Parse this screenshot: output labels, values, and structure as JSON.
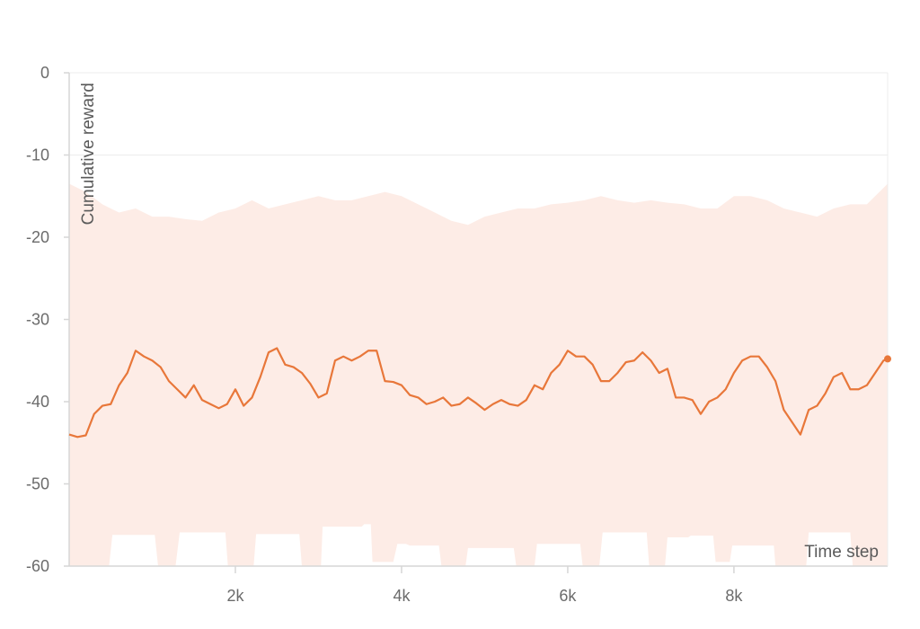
{
  "chart_data": {
    "type": "line",
    "xlabel": "Time step",
    "ylabel": "Cumulative reward",
    "xlim": [
      0,
      9850
    ],
    "ylim": [
      -60,
      0
    ],
    "grid": true,
    "x_ticks": [
      {
        "value": 2000,
        "label": "2k"
      },
      {
        "value": 4000,
        "label": "4k"
      },
      {
        "value": 6000,
        "label": "6k"
      },
      {
        "value": 8000,
        "label": "8k"
      }
    ],
    "y_ticks": [
      {
        "value": 0,
        "label": "0"
      },
      {
        "value": -10,
        "label": "-10"
      },
      {
        "value": -20,
        "label": "-20"
      },
      {
        "value": -30,
        "label": "-30"
      },
      {
        "value": -40,
        "label": "-40"
      },
      {
        "value": -50,
        "label": "-50"
      },
      {
        "value": -60,
        "label": "-60"
      }
    ],
    "colors": {
      "line": "#e8773a",
      "band": "#fdece6",
      "grid": "#ececec",
      "axis": "#d6d6d6"
    },
    "series": [
      {
        "line": [
          [
            0,
            -44.0
          ],
          [
            100,
            -44.3
          ],
          [
            200,
            -44.1
          ],
          [
            300,
            -41.5
          ],
          [
            400,
            -40.5
          ],
          [
            500,
            -40.3
          ],
          [
            600,
            -38.0
          ],
          [
            700,
            -36.5
          ],
          [
            800,
            -33.8
          ],
          [
            900,
            -34.5
          ],
          [
            1000,
            -35.0
          ],
          [
            1100,
            -35.8
          ],
          [
            1200,
            -37.5
          ],
          [
            1300,
            -38.5
          ],
          [
            1400,
            -39.5
          ],
          [
            1500,
            -38.0
          ],
          [
            1600,
            -39.8
          ],
          [
            1700,
            -40.3
          ],
          [
            1800,
            -40.8
          ],
          [
            1900,
            -40.3
          ],
          [
            2000,
            -38.5
          ],
          [
            2100,
            -40.5
          ],
          [
            2200,
            -39.5
          ],
          [
            2300,
            -37.0
          ],
          [
            2400,
            -34.0
          ],
          [
            2500,
            -33.5
          ],
          [
            2600,
            -35.5
          ],
          [
            2700,
            -35.8
          ],
          [
            2800,
            -36.5
          ],
          [
            2900,
            -37.8
          ],
          [
            3000,
            -39.5
          ],
          [
            3100,
            -39.0
          ],
          [
            3200,
            -35.0
          ],
          [
            3300,
            -34.5
          ],
          [
            3400,
            -35.0
          ],
          [
            3500,
            -34.5
          ],
          [
            3600,
            -33.8
          ],
          [
            3700,
            -33.8
          ],
          [
            3800,
            -37.5
          ],
          [
            3900,
            -37.6
          ],
          [
            4000,
            -38.0
          ],
          [
            4100,
            -39.2
          ],
          [
            4200,
            -39.5
          ],
          [
            4300,
            -40.3
          ],
          [
            4400,
            -40.0
          ],
          [
            4500,
            -39.5
          ],
          [
            4600,
            -40.5
          ],
          [
            4700,
            -40.3
          ],
          [
            4800,
            -39.5
          ],
          [
            4900,
            -40.2
          ],
          [
            5000,
            -41.0
          ],
          [
            5100,
            -40.3
          ],
          [
            5200,
            -39.8
          ],
          [
            5300,
            -40.3
          ],
          [
            5400,
            -40.5
          ],
          [
            5500,
            -39.8
          ],
          [
            5600,
            -38.0
          ],
          [
            5700,
            -38.5
          ],
          [
            5800,
            -36.5
          ],
          [
            5900,
            -35.5
          ],
          [
            6000,
            -33.8
          ],
          [
            6100,
            -34.5
          ],
          [
            6200,
            -34.5
          ],
          [
            6300,
            -35.5
          ],
          [
            6400,
            -37.5
          ],
          [
            6500,
            -37.5
          ],
          [
            6600,
            -36.5
          ],
          [
            6700,
            -35.2
          ],
          [
            6800,
            -35.0
          ],
          [
            6900,
            -34.0
          ],
          [
            7000,
            -35.0
          ],
          [
            7100,
            -36.5
          ],
          [
            7200,
            -36.0
          ],
          [
            7300,
            -39.5
          ],
          [
            7400,
            -39.5
          ],
          [
            7500,
            -39.8
          ],
          [
            7600,
            -41.5
          ],
          [
            7700,
            -40.0
          ],
          [
            7800,
            -39.5
          ],
          [
            7900,
            -38.5
          ],
          [
            8000,
            -36.5
          ],
          [
            8100,
            -35.0
          ],
          [
            8200,
            -34.5
          ],
          [
            8300,
            -34.5
          ],
          [
            8400,
            -35.8
          ],
          [
            8500,
            -37.5
          ],
          [
            8600,
            -41.0
          ],
          [
            8700,
            -42.5
          ],
          [
            8800,
            -44.0
          ],
          [
            8900,
            -41.0
          ],
          [
            9000,
            -40.5
          ],
          [
            9100,
            -39.0
          ],
          [
            9200,
            -37.0
          ],
          [
            9300,
            -36.5
          ],
          [
            9400,
            -38.5
          ],
          [
            9500,
            -38.5
          ],
          [
            9600,
            -38.0
          ],
          [
            9700,
            -36.5
          ],
          [
            9800,
            -35.0
          ],
          [
            9850,
            -34.8
          ]
        ],
        "band_upper": [
          [
            0,
            -13.5
          ],
          [
            200,
            -14.5
          ],
          [
            400,
            -16.0
          ],
          [
            600,
            -17.0
          ],
          [
            800,
            -16.5
          ],
          [
            1000,
            -17.5
          ],
          [
            1200,
            -17.5
          ],
          [
            1400,
            -17.8
          ],
          [
            1600,
            -18.0
          ],
          [
            1800,
            -17.0
          ],
          [
            2000,
            -16.5
          ],
          [
            2200,
            -15.5
          ],
          [
            2400,
            -16.5
          ],
          [
            2600,
            -16.0
          ],
          [
            2800,
            -15.5
          ],
          [
            3000,
            -15.0
          ],
          [
            3200,
            -15.5
          ],
          [
            3400,
            -15.5
          ],
          [
            3600,
            -15.0
          ],
          [
            3800,
            -14.5
          ],
          [
            4000,
            -15.0
          ],
          [
            4200,
            -16.0
          ],
          [
            4400,
            -17.0
          ],
          [
            4600,
            -18.0
          ],
          [
            4800,
            -18.5
          ],
          [
            5000,
            -17.5
          ],
          [
            5200,
            -17.0
          ],
          [
            5400,
            -16.5
          ],
          [
            5600,
            -16.5
          ],
          [
            5800,
            -16.0
          ],
          [
            6000,
            -15.8
          ],
          [
            6200,
            -15.5
          ],
          [
            6400,
            -15.0
          ],
          [
            6600,
            -15.5
          ],
          [
            6800,
            -15.8
          ],
          [
            7000,
            -15.5
          ],
          [
            7200,
            -15.8
          ],
          [
            7400,
            -16.0
          ],
          [
            7600,
            -16.5
          ],
          [
            7800,
            -16.5
          ],
          [
            8000,
            -15.0
          ],
          [
            8200,
            -15.0
          ],
          [
            8400,
            -15.5
          ],
          [
            8600,
            -16.5
          ],
          [
            8800,
            -17.0
          ],
          [
            9000,
            -17.5
          ],
          [
            9200,
            -16.5
          ],
          [
            9400,
            -16.0
          ],
          [
            9600,
            -16.0
          ],
          [
            9850,
            -13.5
          ]
        ],
        "band_lower": [
          [
            0,
            -60.0
          ],
          [
            480,
            -60.0
          ],
          [
            520,
            -56.2
          ],
          [
            1030,
            -56.2
          ],
          [
            1070,
            -60.0
          ],
          [
            1280,
            -60.0
          ],
          [
            1330,
            -55.9
          ],
          [
            1880,
            -55.9
          ],
          [
            1910,
            -60.0
          ],
          [
            2220,
            -60.0
          ],
          [
            2250,
            -56.1
          ],
          [
            2770,
            -56.1
          ],
          [
            2800,
            -60.0
          ],
          [
            3030,
            -60.0
          ],
          [
            3050,
            -55.2
          ],
          [
            3520,
            -55.2
          ],
          [
            3550,
            -54.9
          ],
          [
            3630,
            -54.9
          ],
          [
            3650,
            -59.5
          ],
          [
            3900,
            -59.5
          ],
          [
            3950,
            -57.3
          ],
          [
            4050,
            -57.3
          ],
          [
            4100,
            -57.5
          ],
          [
            4450,
            -57.5
          ],
          [
            4480,
            -60.0
          ],
          [
            4770,
            -60.0
          ],
          [
            4800,
            -57.8
          ],
          [
            5350,
            -57.8
          ],
          [
            5380,
            -60.0
          ],
          [
            5600,
            -60.0
          ],
          [
            5630,
            -57.3
          ],
          [
            6150,
            -57.3
          ],
          [
            6180,
            -60.0
          ],
          [
            6380,
            -60.0
          ],
          [
            6420,
            -55.9
          ],
          [
            6950,
            -55.9
          ],
          [
            6980,
            -60.0
          ],
          [
            7170,
            -60.0
          ],
          [
            7200,
            -56.5
          ],
          [
            7450,
            -56.5
          ],
          [
            7480,
            -56.3
          ],
          [
            7750,
            -56.3
          ],
          [
            7780,
            -59.5
          ],
          [
            7950,
            -59.5
          ],
          [
            7980,
            -57.5
          ],
          [
            8480,
            -57.5
          ],
          [
            8500,
            -60.0
          ],
          [
            8870,
            -60.0
          ],
          [
            8900,
            -55.9
          ],
          [
            9400,
            -55.9
          ],
          [
            9430,
            -60.0
          ],
          [
            9850,
            -60.0
          ]
        ]
      }
    ]
  }
}
